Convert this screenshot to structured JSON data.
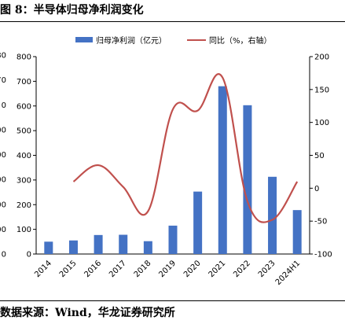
{
  "figure": {
    "title": "图 8：半导体归母净利润变化",
    "source": "数据来源：Wind，华龙证券研究所"
  },
  "chart_data": {
    "type": "bar",
    "categories": [
      "2014",
      "2015",
      "2016",
      "2017",
      "2018",
      "2019",
      "2020",
      "2021",
      "2022",
      "2023",
      "2024H1"
    ],
    "series": [
      {
        "name": "归母净利润（亿元）",
        "type": "bar",
        "axis": "left",
        "color": "#4472C4",
        "values": [
          50,
          55,
          77,
          78,
          52,
          115,
          253,
          680,
          603,
          313,
          178
        ]
      },
      {
        "name": "同比（%，右轴）",
        "type": "line",
        "axis": "right",
        "color": "#C0504D",
        "values": [
          null,
          10,
          35,
          2,
          -35,
          120,
          118,
          168,
          -20,
          -48,
          10
        ]
      }
    ],
    "y_left": {
      "min": 0,
      "max": 800,
      "ticks": [
        0,
        100,
        200,
        300,
        400,
        500,
        600,
        700,
        800
      ]
    },
    "y_right": {
      "min": -100,
      "max": 200,
      "ticks": [
        -100,
        -50,
        0,
        50,
        100,
        150,
        200
      ]
    },
    "outer_ticks": [
      "0",
      "00",
      "00",
      "00",
      "00",
      "00",
      "0",
      "70",
      "80"
    ],
    "legend_position": "top",
    "grid": false
  }
}
